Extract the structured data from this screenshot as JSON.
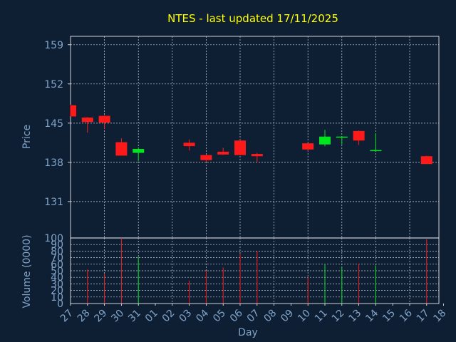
{
  "chart_data": {
    "type": "candlestick",
    "title": "NTES - last updated 17/11/2025",
    "price_axis": {
      "label": "Price",
      "ticks": [
        131,
        138,
        145,
        152,
        159
      ],
      "range": [
        124.5,
        160.5
      ]
    },
    "volume_axis": {
      "label": "Volume (0000)",
      "ticks": [
        0,
        10,
        20,
        30,
        40,
        50,
        60,
        70,
        80,
        90,
        100
      ],
      "range": [
        0,
        100
      ]
    },
    "x_axis": {
      "label": "Day",
      "ticks": [
        "27",
        "28",
        "29",
        "30",
        "31",
        "01",
        "02",
        "03",
        "04",
        "05",
        "06",
        "07",
        "08",
        "09",
        "10",
        "11",
        "12",
        "13",
        "14",
        "15",
        "16",
        "17",
        "18"
      ]
    },
    "candles": [
      {
        "day": "27",
        "open": 148.2,
        "high": 148.3,
        "low": 146.2,
        "close": 146.2,
        "volume": 0
      },
      {
        "day": "28",
        "open": 146.0,
        "high": 146.1,
        "low": 143.3,
        "close": 145.2,
        "volume": 52
      },
      {
        "day": "29",
        "open": 146.3,
        "high": 146.4,
        "low": 144.0,
        "close": 145.1,
        "volume": 46
      },
      {
        "day": "30",
        "open": 141.6,
        "high": 142.3,
        "low": 139.2,
        "close": 139.2,
        "volume": 100
      },
      {
        "day": "31",
        "open": 139.7,
        "high": 140.4,
        "low": 138.2,
        "close": 140.4,
        "volume": 71
      },
      {
        "day": "03",
        "open": 141.5,
        "high": 142.1,
        "low": 140.1,
        "close": 140.9,
        "volume": 35
      },
      {
        "day": "04",
        "open": 139.3,
        "high": 139.4,
        "low": 138.1,
        "close": 138.4,
        "volume": 50
      },
      {
        "day": "05",
        "open": 139.9,
        "high": 140.6,
        "low": 139.3,
        "close": 139.4,
        "volume": 55
      },
      {
        "day": "06",
        "open": 141.9,
        "high": 142.0,
        "low": 139.3,
        "close": 139.3,
        "volume": 76
      },
      {
        "day": "07",
        "open": 139.5,
        "high": 139.7,
        "low": 138.1,
        "close": 139.1,
        "volume": 80
      },
      {
        "day": "10",
        "open": 141.4,
        "high": 141.5,
        "low": 140.0,
        "close": 140.3,
        "volume": 40
      },
      {
        "day": "11",
        "open": 141.2,
        "high": 143.8,
        "low": 140.9,
        "close": 142.6,
        "volume": 60
      },
      {
        "day": "12",
        "open": 142.5,
        "high": 142.7,
        "low": 141.2,
        "close": 142.6,
        "volume": 56
      },
      {
        "day": "13",
        "open": 143.6,
        "high": 143.7,
        "low": 141.1,
        "close": 141.9,
        "volume": 61
      },
      {
        "day": "14",
        "open": 140.0,
        "high": 143.2,
        "low": 140.0,
        "close": 140.2,
        "volume": 58
      },
      {
        "day": "17",
        "open": 139.1,
        "high": 139.2,
        "low": 137.7,
        "close": 137.7,
        "volume": 98
      }
    ],
    "up_color": "#00e61e",
    "down_color": "#ff1a1a",
    "title_color": "#ffff00",
    "axis_text_color": "#7fa3c9",
    "grid": true
  }
}
